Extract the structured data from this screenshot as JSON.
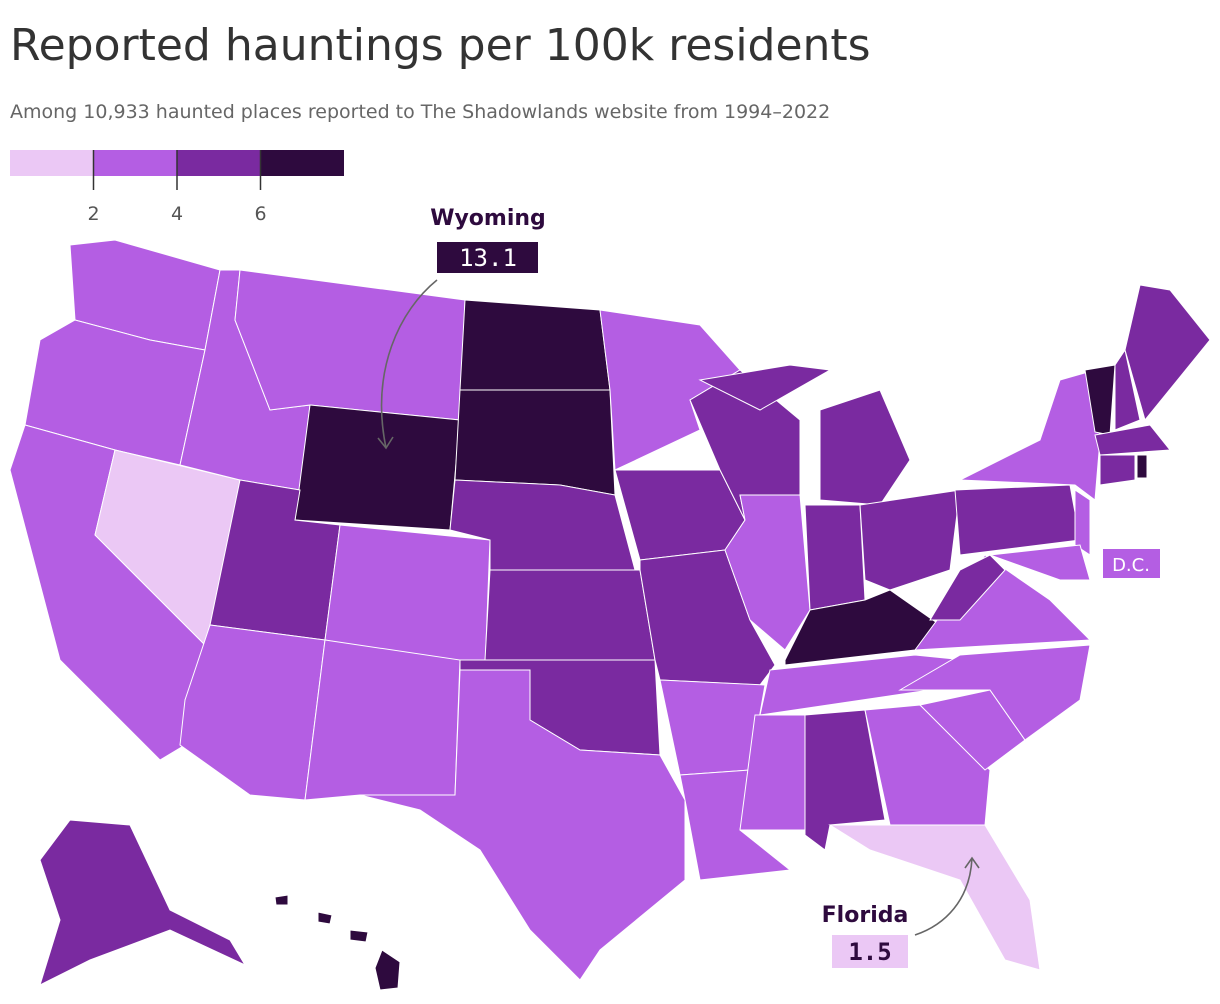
{
  "title": "Reported hauntings per 100k residents",
  "subtitle": "Among 10,933 haunted places reported to The Shadowlands website from 1994–2022",
  "legend": {
    "colors": [
      "#ebc8f5",
      "#b45ee3",
      "#7a2aa0",
      "#2e0a3e"
    ],
    "lim": [
      0,
      8
    ],
    "ticks": [
      2,
      4,
      6
    ]
  },
  "annotations": [
    {
      "label": "Wyoming",
      "value": 13.1,
      "color": "#2e0a3e",
      "text_color": "#ffffff"
    },
    {
      "label": "Florida",
      "value": 1.5,
      "color": "#ebc8f5",
      "text_color": "#2e0a3e"
    },
    {
      "label": "D.C.",
      "color": "#b45ee3",
      "text_color": "#ffffff"
    }
  ],
  "map": {
    "state_bins": [
      1,
      1,
      1,
      0,
      1,
      1,
      3,
      2,
      1,
      1,
      1,
      3,
      3,
      2,
      2,
      2,
      1,
      1,
      2,
      2,
      1,
      1,
      2,
      1,
      2,
      2,
      2,
      2,
      3,
      1,
      1,
      2,
      1,
      0,
      1,
      1,
      1,
      2,
      2,
      1,
      1,
      1,
      3,
      2,
      2,
      2,
      2,
      3,
      2,
      3,
      3,
      3,
      3
    ]
  }
}
